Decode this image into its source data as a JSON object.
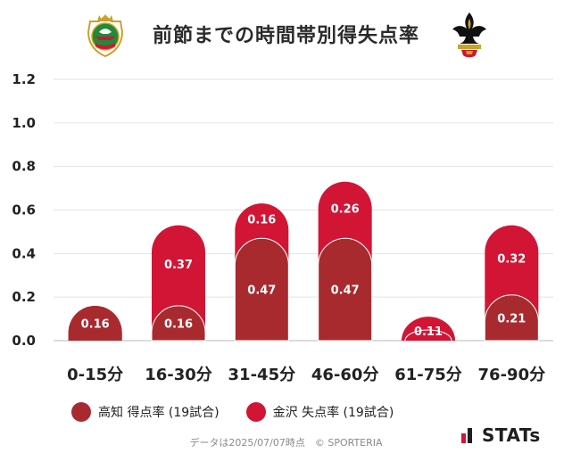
{
  "header": {
    "title": "前節までの時間帯別得失点率",
    "home_crest_icon": "kochi-crest-icon",
    "away_crest_icon": "kanazawa-fleur-de-lis-crest-icon"
  },
  "colors": {
    "home": "#a82a2f",
    "away": "#d21535",
    "grid": "#e3e3e3",
    "axis": "#bbbbbb"
  },
  "chart_data": {
    "type": "bar",
    "stacked": true,
    "title": "前節までの時間帯別得失点率",
    "categories": [
      "0-15分",
      "16-30分",
      "31-45分",
      "46-60分",
      "61-75分",
      "76-90分"
    ],
    "series": [
      {
        "name": "高知 得点率 (19試合)",
        "values": [
          0.16,
          0.16,
          0.47,
          0.47,
          0.0,
          0.21
        ]
      },
      {
        "name": "金沢 失点率 (19試合)",
        "values": [
          0.0,
          0.37,
          0.16,
          0.26,
          0.11,
          0.32
        ]
      }
    ],
    "yticks": [
      "0.0",
      "0.2",
      "0.4",
      "0.6",
      "0.8",
      "1.0",
      "1.2"
    ],
    "ylim": [
      0,
      1.2
    ],
    "xlabel": "",
    "ylabel": "",
    "grid": true,
    "legend_position": "bottom-left"
  },
  "legend": {
    "items": [
      {
        "label": "高知 得点率 (19試合)",
        "color": "#a82a2f"
      },
      {
        "label": "金沢 失点率 (19試合)",
        "color": "#d21535"
      }
    ]
  },
  "footer": {
    "note": "データは2025/07/07時点　© SPORTERIA"
  },
  "brand": {
    "name": "STATs",
    "icon": "stats-bar-logo-icon"
  }
}
